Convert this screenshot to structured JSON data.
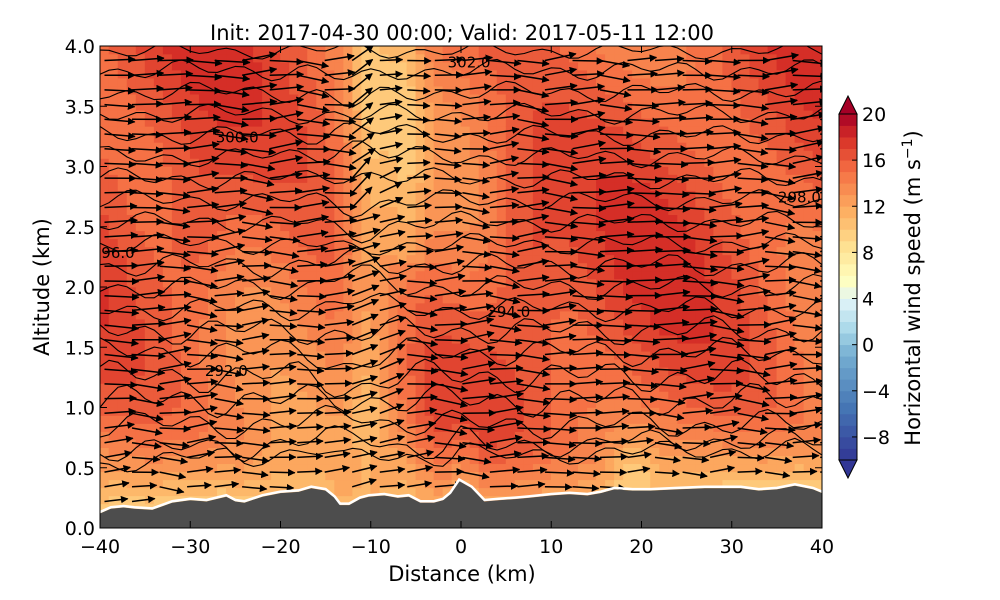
{
  "chart_data": {
    "type": "heatmap",
    "title": "Init: 2017-04-30 00:00; Valid: 2017-05-11 12:00",
    "xlabel": "Distance (km)",
    "ylabel": "Altitude (km)",
    "xlim": [
      -40,
      40
    ],
    "ylim": [
      0.0,
      4.0
    ],
    "x_ticks": [
      -40,
      -30,
      -20,
      -10,
      0,
      10,
      20,
      30,
      40
    ],
    "x_tick_labels": [
      "−40",
      "−30",
      "−20",
      "−10",
      "0",
      "10",
      "20",
      "30",
      "40"
    ],
    "y_ticks": [
      0.0,
      0.5,
      1.0,
      1.5,
      2.0,
      2.5,
      3.0,
      3.5,
      4.0
    ],
    "y_tick_labels": [
      "0.0",
      "0.5",
      "1.0",
      "1.5",
      "2.0",
      "2.5",
      "3.0",
      "3.5",
      "4.0"
    ],
    "colorbar": {
      "label": "Horizontal wind speed (m s",
      "label_superscript": "−1",
      "label_close": ")",
      "range": [
        -10,
        20
      ],
      "ticks": [
        20,
        16,
        12,
        8,
        4,
        0,
        -4,
        -8
      ],
      "tick_labels": [
        "20",
        "16",
        "12",
        "8",
        "4",
        "0",
        "−4",
        "−8"
      ],
      "extend": "both",
      "colormap": "RdYlBu_r"
    },
    "contour_labels": [
      {
        "text": "302.0",
        "x": 0.9,
        "y": 3.82
      },
      {
        "text": "300.0",
        "x": -24.8,
        "y": 3.2
      },
      {
        "text": "298.0",
        "x": 37.5,
        "y": 2.7
      },
      {
        "text": "96.0",
        "x": -38,
        "y": 2.24
      },
      {
        "text": "294.0",
        "x": 5.3,
        "y": 1.75
      },
      {
        "text": "292.0",
        "x": -26,
        "y": 1.26
      }
    ],
    "terrain": [
      [
        -40,
        0.12
      ],
      [
        -38.8,
        0.16
      ],
      [
        -37.4,
        0.17
      ],
      [
        -36.2,
        0.16
      ],
      [
        -34.2,
        0.15
      ],
      [
        -32,
        0.21
      ],
      [
        -30,
        0.23
      ],
      [
        -28.2,
        0.22
      ],
      [
        -26,
        0.26
      ],
      [
        -25,
        0.22
      ],
      [
        -24,
        0.21
      ],
      [
        -22,
        0.26
      ],
      [
        -20,
        0.29
      ],
      [
        -18,
        0.3
      ],
      [
        -16.6,
        0.33
      ],
      [
        -15,
        0.31
      ],
      [
        -14,
        0.25
      ],
      [
        -13.4,
        0.19
      ],
      [
        -12.4,
        0.19
      ],
      [
        -11.2,
        0.24
      ],
      [
        -10.2,
        0.26
      ],
      [
        -8.5,
        0.27
      ],
      [
        -7,
        0.25
      ],
      [
        -5.8,
        0.26
      ],
      [
        -4.5,
        0.21
      ],
      [
        -3,
        0.21
      ],
      [
        -2,
        0.23
      ],
      [
        -1.2,
        0.28
      ],
      [
        -0.2,
        0.39
      ],
      [
        1.2,
        0.33
      ],
      [
        2.6,
        0.22
      ],
      [
        4.2,
        0.23
      ],
      [
        6,
        0.24
      ],
      [
        7.5,
        0.25
      ],
      [
        10,
        0.27
      ],
      [
        12,
        0.28
      ],
      [
        14,
        0.27
      ],
      [
        15.5,
        0.29
      ],
      [
        17,
        0.32
      ],
      [
        19,
        0.31
      ],
      [
        21,
        0.31
      ],
      [
        24,
        0.32
      ],
      [
        27,
        0.33
      ],
      [
        29,
        0.33
      ],
      [
        31,
        0.33
      ],
      [
        33,
        0.31
      ],
      [
        35,
        0.32
      ],
      [
        37,
        0.35
      ],
      [
        39,
        0.32
      ],
      [
        40,
        0.29
      ]
    ],
    "isentropes": [
      {
        "y0": 0.45,
        "amp": 0.05
      },
      {
        "y0": 0.65,
        "amp": 0.06
      },
      {
        "y0": 0.86,
        "amp": 0.07
      },
      {
        "y0": 1.06,
        "amp": 0.08
      },
      {
        "y0": 1.26,
        "amp": 0.08
      },
      {
        "y0": 1.46,
        "amp": 0.07
      },
      {
        "y0": 1.64,
        "amp": 0.07
      },
      {
        "y0": 1.82,
        "amp": 0.06
      },
      {
        "y0": 2.0,
        "amp": 0.06
      },
      {
        "y0": 2.18,
        "amp": 0.06
      },
      {
        "y0": 2.36,
        "amp": 0.05
      },
      {
        "y0": 2.54,
        "amp": 0.05
      },
      {
        "y0": 2.72,
        "amp": 0.05
      },
      {
        "y0": 2.9,
        "amp": 0.05
      },
      {
        "y0": 3.08,
        "amp": 0.05
      },
      {
        "y0": 3.26,
        "amp": 0.05
      },
      {
        "y0": 3.44,
        "amp": 0.05
      },
      {
        "y0": 3.62,
        "amp": 0.05
      },
      {
        "y0": 3.8,
        "amp": 0.05
      },
      {
        "y0": 3.96,
        "amp": 0.04
      }
    ],
    "colors": {
      "terrain": "#4d4d4d",
      "surface_line": "#ffffff",
      "background": "#d73a2b"
    },
    "grid": false
  }
}
